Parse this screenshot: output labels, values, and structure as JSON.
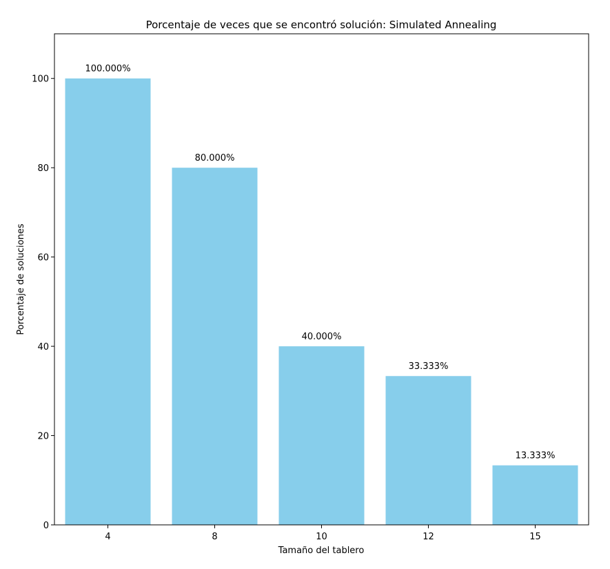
{
  "chart_data": {
    "type": "bar",
    "title": "Porcentaje de veces que se encontró solución: Simulated Annealing",
    "xlabel": "Tamaño del tablero",
    "ylabel": "Porcentaje de soluciones",
    "categories": [
      "4",
      "8",
      "10",
      "12",
      "15"
    ],
    "values": [
      100.0,
      80.0,
      40.0,
      33.333,
      13.333
    ],
    "data_labels": [
      "100.000%",
      "80.000%",
      "40.000%",
      "33.333%",
      "13.333%"
    ],
    "ylim": [
      0,
      110
    ],
    "yticks": [
      0,
      20,
      40,
      60,
      80,
      100
    ],
    "ytick_labels": [
      "0",
      "20",
      "40",
      "60",
      "80",
      "100"
    ],
    "grid": false,
    "bar_color": "#87CEEB"
  }
}
